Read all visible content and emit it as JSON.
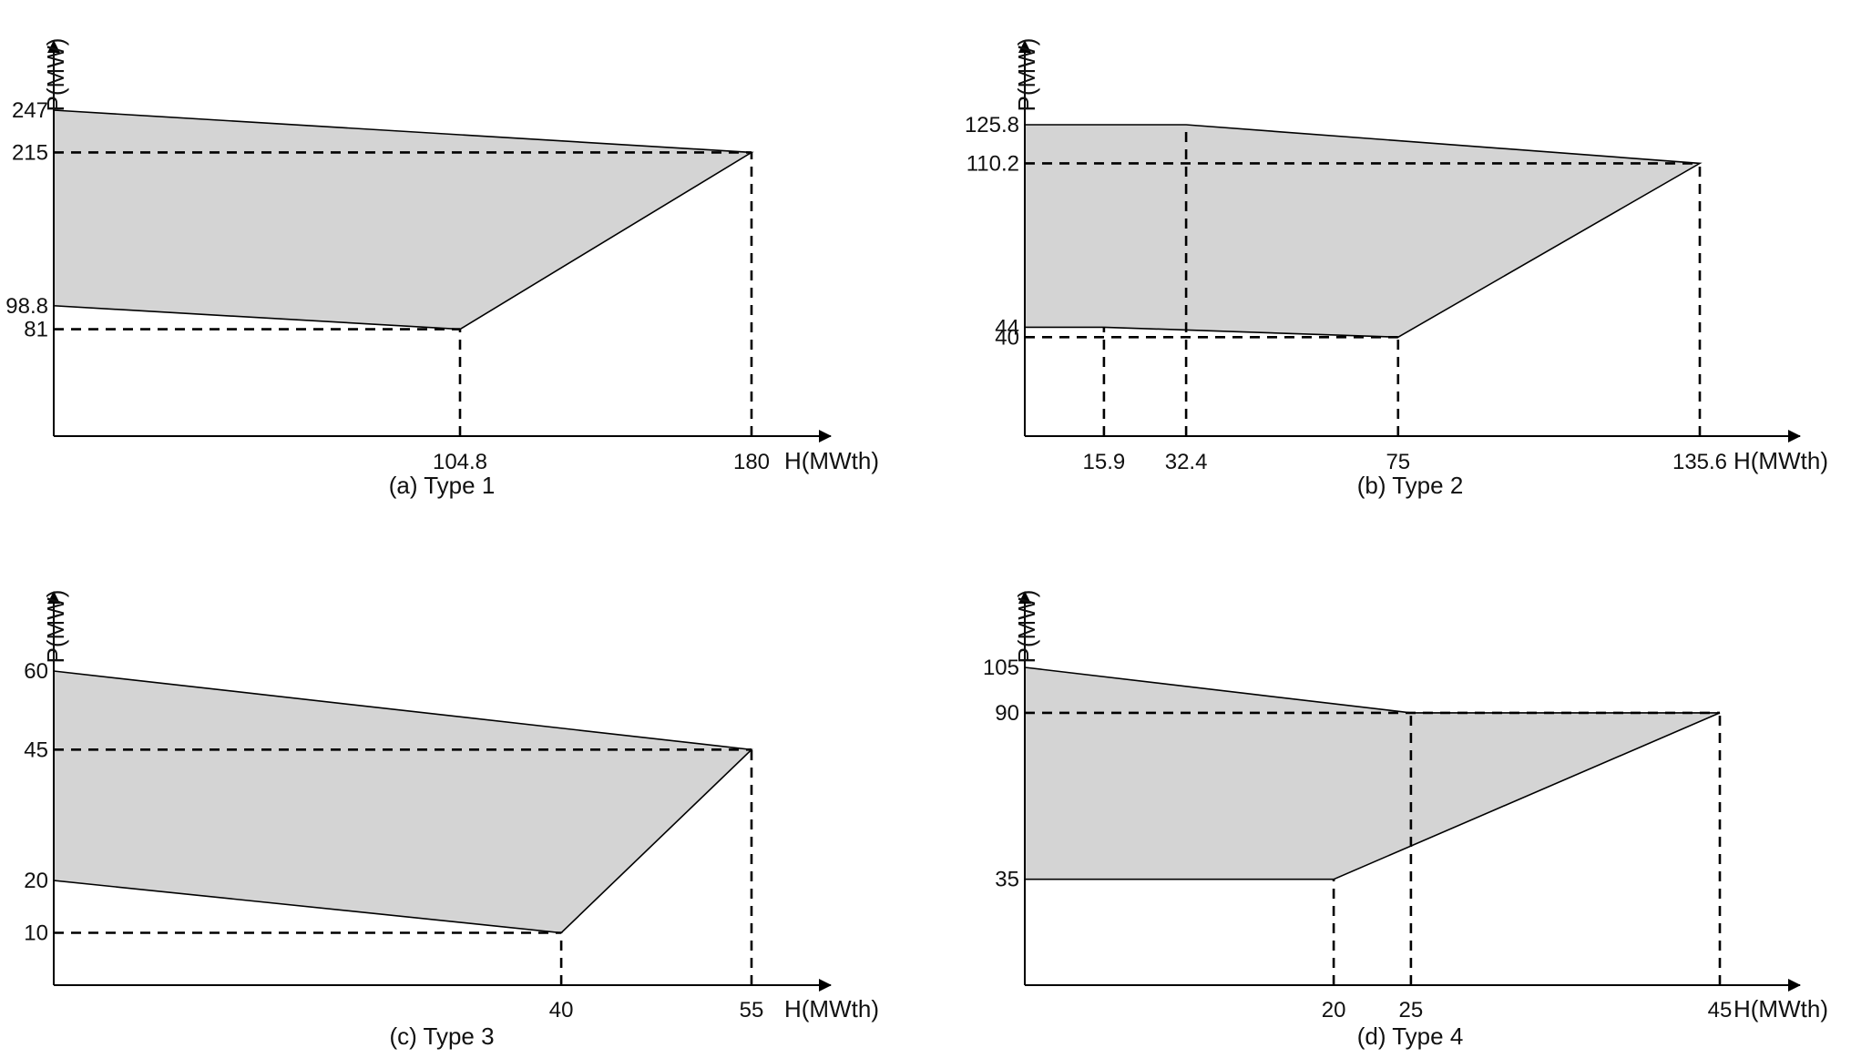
{
  "colors": {
    "region_fill": "#d4d4d4",
    "line": "#000000",
    "background": "#ffffff"
  },
  "chart_data": [
    {
      "type": "area",
      "caption": "(a) Type 1",
      "xlabel": "H(MWth)",
      "ylabel": "P(MW)",
      "xlim": [
        0,
        180
      ],
      "ylim": [
        0,
        247
      ],
      "x_ticks": [
        104.8,
        180
      ],
      "x_tick_labels": [
        "104.8",
        "180"
      ],
      "y_ticks": [
        247,
        215,
        98.8,
        81
      ],
      "y_tick_labels": [
        "247",
        "215",
        "98.8",
        "81"
      ],
      "region": [
        [
          0,
          247
        ],
        [
          180,
          215
        ],
        [
          104.8,
          81
        ],
        [
          0,
          98.8
        ]
      ],
      "guides": [
        {
          "x1": 0,
          "y1": 215,
          "x2": 180,
          "y2": 215
        },
        {
          "x1": 0,
          "y1": 81,
          "x2": 104.8,
          "y2": 81
        },
        {
          "x1": 104.8,
          "y1": 0,
          "x2": 104.8,
          "y2": 81
        },
        {
          "x1": 180,
          "y1": 0,
          "x2": 180,
          "y2": 215
        }
      ]
    },
    {
      "type": "area",
      "caption": "(b) Type 2",
      "xlabel": "H(MWth)",
      "ylabel": "P(MW)",
      "xlim": [
        0,
        135.6
      ],
      "ylim": [
        0,
        125.8
      ],
      "x_ticks": [
        15.9,
        32.4,
        75,
        135.6
      ],
      "x_tick_labels": [
        "15.9",
        "32.4",
        "75",
        "135.6"
      ],
      "y_ticks": [
        125.8,
        110.2,
        44,
        40
      ],
      "y_tick_labels": [
        "125.8",
        "110.2",
        "44",
        "40"
      ],
      "region": [
        [
          0,
          125.8
        ],
        [
          32.4,
          125.8
        ],
        [
          135.6,
          110.2
        ],
        [
          75,
          40
        ],
        [
          15.9,
          44
        ],
        [
          0,
          44
        ]
      ],
      "guides": [
        {
          "x1": 0,
          "y1": 110.2,
          "x2": 135.6,
          "y2": 110.2
        },
        {
          "x1": 0,
          "y1": 40,
          "x2": 75,
          "y2": 40
        },
        {
          "x1": 15.9,
          "y1": 0,
          "x2": 15.9,
          "y2": 44
        },
        {
          "x1": 32.4,
          "y1": 0,
          "x2": 32.4,
          "y2": 125.8
        },
        {
          "x1": 75,
          "y1": 0,
          "x2": 75,
          "y2": 40
        },
        {
          "x1": 135.6,
          "y1": 0,
          "x2": 135.6,
          "y2": 110.2
        }
      ]
    },
    {
      "type": "area",
      "caption": "(c) Type 3",
      "xlabel": "H(MWth)",
      "ylabel": "P(MW)",
      "xlim": [
        0,
        55
      ],
      "ylim": [
        0,
        60
      ],
      "x_ticks": [
        40,
        55
      ],
      "x_tick_labels": [
        "40",
        "55"
      ],
      "y_ticks": [
        60,
        45,
        20,
        10
      ],
      "y_tick_labels": [
        "60",
        "45",
        "20",
        "10"
      ],
      "region": [
        [
          0,
          60
        ],
        [
          55,
          45
        ],
        [
          40,
          10
        ],
        [
          0,
          20
        ]
      ],
      "guides": [
        {
          "x1": 0,
          "y1": 45,
          "x2": 55,
          "y2": 45
        },
        {
          "x1": 0,
          "y1": 10,
          "x2": 40,
          "y2": 10
        },
        {
          "x1": 40,
          "y1": 0,
          "x2": 40,
          "y2": 10
        },
        {
          "x1": 55,
          "y1": 0,
          "x2": 55,
          "y2": 45
        }
      ]
    },
    {
      "type": "area",
      "caption": "(d) Type 4",
      "xlabel": "H(MWth)",
      "ylabel": "P(MW)",
      "xlim": [
        0,
        45
      ],
      "ylim": [
        0,
        105
      ],
      "x_ticks": [
        20,
        25,
        45
      ],
      "x_tick_labels": [
        "20",
        "25",
        "45"
      ],
      "y_ticks": [
        105,
        90,
        35
      ],
      "y_tick_labels": [
        "105",
        "90",
        "35"
      ],
      "region": [
        [
          0,
          105
        ],
        [
          25,
          90
        ],
        [
          45,
          90
        ],
        [
          20,
          35
        ],
        [
          0,
          35
        ]
      ],
      "guides": [
        {
          "x1": 0,
          "y1": 90,
          "x2": 45,
          "y2": 90
        },
        {
          "x1": 20,
          "y1": 0,
          "x2": 20,
          "y2": 35
        },
        {
          "x1": 25,
          "y1": 0,
          "x2": 25,
          "y2": 90
        },
        {
          "x1": 45,
          "y1": 0,
          "x2": 45,
          "y2": 90
        }
      ]
    }
  ]
}
